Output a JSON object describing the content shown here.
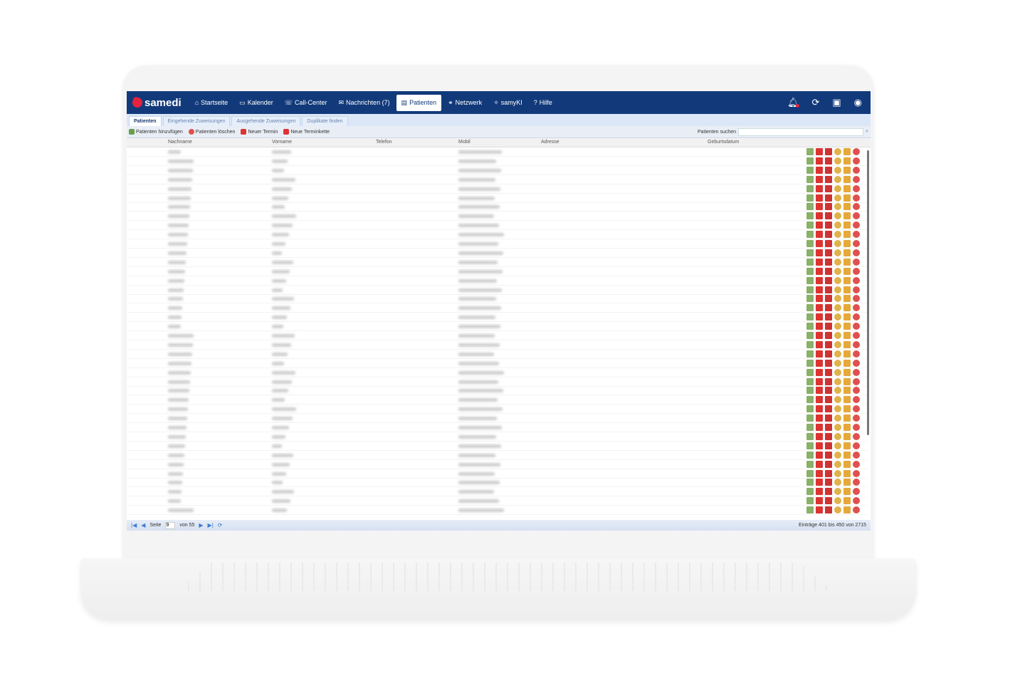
{
  "brand": "samedi",
  "nav": {
    "items": [
      {
        "label": "Startseite",
        "icon": "⌂"
      },
      {
        "label": "Kalender",
        "icon": "▭"
      },
      {
        "label": "Call-Center",
        "icon": "☏"
      },
      {
        "label": "Nachrichten (7)",
        "icon": "✉"
      },
      {
        "label": "Patienten",
        "icon": "▤",
        "active": true
      },
      {
        "label": "Netzwerk",
        "icon": "⚭"
      },
      {
        "label": "samyKI",
        "icon": "✧"
      },
      {
        "label": "Hilfe",
        "icon": "?"
      }
    ],
    "right_icons": [
      "bell-icon",
      "refresh-icon",
      "calendar-add-icon",
      "user-account-icon"
    ]
  },
  "tabs": [
    {
      "label": "Patienten",
      "active": true
    },
    {
      "label": "Eingehende Zuweisungen"
    },
    {
      "label": "Ausgehende Zuweisungen"
    },
    {
      "label": "Duplikate finden"
    }
  ],
  "toolbar": {
    "add": "Patienten hinzufügen",
    "delete": "Patienten löschen",
    "new_appointment": "Neuer Termin",
    "new_chain": "Neue Terminkette",
    "search_label": "Patienten suchen",
    "search_value": ""
  },
  "columns": {
    "nachname": "Nachname",
    "vorname": "Vorname",
    "telefon": "Telefon",
    "mobil": "Mobil",
    "adresse": "Adresse",
    "geburtsdatum": "Geburtsdatum"
  },
  "pager": {
    "page_label": "Seite",
    "page": "9",
    "of_label": "von 55",
    "summary": "Einträge 401 bis 450 von 2715"
  },
  "colors": {
    "nav": "#123a7b",
    "brand": "#e6223c",
    "tab_bar": "#dbe7f7"
  }
}
